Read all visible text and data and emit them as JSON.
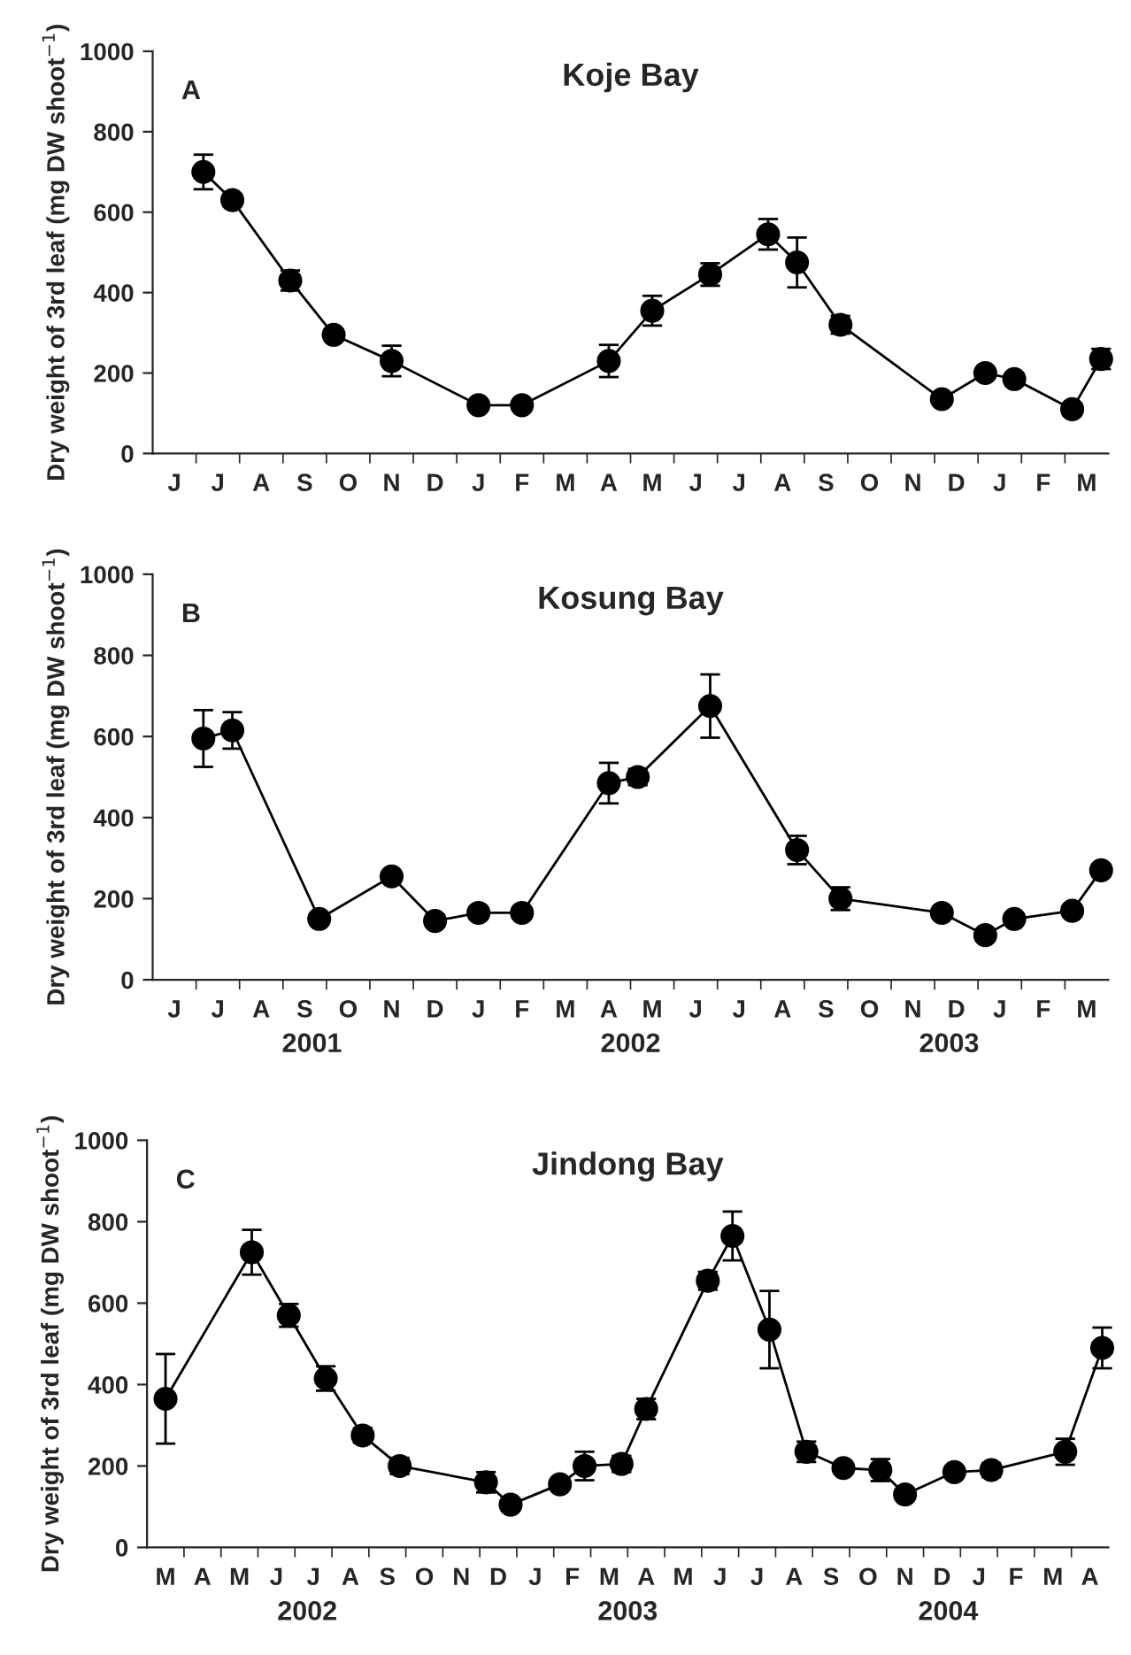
{
  "chart_data": [
    {
      "type": "line",
      "title": "Koje Bay",
      "ylabel": "Dry weight of 3rd leaf (mg DW shoot$^{−1}$)",
      "color": "#000000",
      "marker": "circle",
      "line_style": "solid",
      "categories": [
        null,
        "J",
        null,
        null,
        "J",
        null,
        null,
        "A",
        null,
        null,
        "S",
        null,
        null,
        "O",
        null,
        null,
        "N",
        null,
        null,
        "D",
        null,
        null,
        "J",
        null,
        null,
        "F",
        null,
        null,
        "M",
        null,
        null,
        "A",
        null,
        null,
        "M",
        null,
        null,
        "J",
        null,
        null,
        "J",
        null,
        null,
        "A",
        null,
        null,
        "S",
        null,
        null,
        "O",
        null,
        null,
        "N",
        null,
        null,
        "D",
        null,
        null,
        "J",
        null,
        null,
        "F",
        null,
        null,
        "M",
        null
      ],
      "values": [
        null,
        null,
        null,
        700,
        null,
        630,
        null,
        null,
        null,
        430,
        null,
        null,
        295,
        null,
        null,
        null,
        230,
        null,
        null,
        null,
        null,
        null,
        120,
        null,
        null,
        120,
        null,
        null,
        null,
        null,
        null,
        230,
        null,
        null,
        355,
        null,
        null,
        null,
        445,
        null,
        null,
        null,
        545,
        null,
        475,
        null,
        null,
        320,
        null,
        null,
        null,
        null,
        null,
        null,
        135,
        null,
        null,
        200,
        null,
        185,
        null,
        null,
        null,
        110,
        null,
        235
      ],
      "errors": [
        null,
        null,
        null,
        43,
        null,
        15,
        null,
        null,
        null,
        25,
        null,
        null,
        15,
        null,
        null,
        null,
        38,
        null,
        null,
        null,
        null,
        null,
        10,
        null,
        null,
        12,
        null,
        null,
        null,
        null,
        null,
        40,
        null,
        null,
        37,
        null,
        null,
        null,
        28,
        null,
        null,
        null,
        38,
        null,
        62,
        null,
        null,
        22,
        null,
        null,
        null,
        null,
        null,
        null,
        13,
        null,
        null,
        12,
        null,
        15,
        null,
        null,
        null,
        15,
        null,
        25
      ],
      "ylim": [
        0,
        1000
      ],
      "yticks": [
        0,
        200,
        400,
        600,
        800,
        1000
      ],
      "grid": false,
      "annotations": [
        "A"
      ]
    },
    {
      "type": "line",
      "title": "Kosung Bay",
      "ylabel": "Dry weight of 3rd leaf (mg DW shoot$^{−1}$)",
      "color": "#000000",
      "marker": "circle",
      "line_style": "solid",
      "categories": [
        null,
        "J",
        null,
        null,
        "J",
        null,
        null,
        "A",
        null,
        null,
        "S",
        null,
        null,
        "O",
        null,
        null,
        "N",
        null,
        null,
        "D",
        null,
        null,
        "J",
        null,
        null,
        "F",
        null,
        null,
        "M",
        null,
        null,
        "A",
        null,
        null,
        "M",
        null,
        null,
        "J",
        null,
        null,
        "J",
        null,
        null,
        "A",
        null,
        null,
        "S",
        null,
        null,
        "O",
        null,
        null,
        "N",
        null,
        null,
        "D",
        null,
        null,
        "J",
        null,
        null,
        "F",
        null,
        null,
        "M",
        null
      ],
      "values": [
        null,
        null,
        null,
        595,
        null,
        615,
        null,
        null,
        null,
        null,
        null,
        150,
        null,
        null,
        null,
        null,
        255,
        null,
        null,
        145,
        null,
        null,
        165,
        null,
        null,
        165,
        null,
        null,
        null,
        null,
        null,
        485,
        null,
        500,
        null,
        null,
        null,
        null,
        675,
        null,
        null,
        null,
        null,
        null,
        320,
        null,
        null,
        200,
        null,
        null,
        null,
        null,
        null,
        null,
        165,
        null,
        null,
        110,
        null,
        150,
        null,
        null,
        null,
        170,
        null,
        270
      ],
      "errors": [
        null,
        null,
        null,
        70,
        null,
        45,
        null,
        null,
        null,
        null,
        null,
        12,
        null,
        null,
        null,
        null,
        12,
        null,
        null,
        15,
        null,
        null,
        15,
        null,
        null,
        12,
        null,
        null,
        null,
        null,
        null,
        50,
        null,
        20,
        null,
        null,
        null,
        null,
        78,
        null,
        null,
        null,
        null,
        null,
        35,
        null,
        null,
        28,
        null,
        null,
        null,
        null,
        null,
        null,
        12,
        null,
        null,
        15,
        null,
        12,
        null,
        null,
        null,
        12,
        null,
        15
      ],
      "ylim": [
        0,
        1000
      ],
      "yticks": [
        0,
        200,
        400,
        600,
        800,
        1000
      ],
      "grid": false,
      "annotations": [
        "B",
        "2001",
        "2002",
        "2003"
      ]
    },
    {
      "type": "line",
      "title": "Jindong Bay",
      "ylabel": "Dry weight of 3rd leaf (mg DW shoot$^{−1}$)",
      "color": "#000000",
      "marker": "circle",
      "line_style": "solid",
      "categories": [
        null,
        "M",
        null,
        null,
        "A",
        null,
        null,
        "M",
        null,
        null,
        "J",
        null,
        null,
        "J",
        null,
        null,
        "A",
        null,
        null,
        "S",
        null,
        null,
        "O",
        null,
        null,
        "N",
        null,
        null,
        "D",
        null,
        null,
        "J",
        null,
        null,
        "F",
        null,
        null,
        "M",
        null,
        null,
        "A",
        null,
        null,
        "M",
        null,
        null,
        "J",
        null,
        null,
        "J",
        null,
        null,
        "A",
        null,
        null,
        "S",
        null,
        null,
        "O",
        null,
        null,
        "N",
        null,
        null,
        "D",
        null,
        null,
        "J",
        null,
        null,
        "F",
        null,
        null,
        "M",
        null,
        null,
        "A",
        null
      ],
      "values": [
        null,
        365,
        null,
        null,
        null,
        null,
        null,
        null,
        725,
        null,
        null,
        570,
        null,
        null,
        415,
        null,
        null,
        275,
        null,
        null,
        200,
        null,
        null,
        null,
        null,
        null,
        null,
        160,
        null,
        105,
        null,
        null,
        null,
        155,
        null,
        200,
        null,
        null,
        205,
        null,
        340,
        null,
        null,
        null,
        null,
        655,
        null,
        765,
        null,
        null,
        535,
        null,
        null,
        235,
        null,
        null,
        195,
        null,
        null,
        190,
        null,
        130,
        null,
        null,
        null,
        185,
        null,
        null,
        190,
        null,
        null,
        null,
        null,
        null,
        235,
        null,
        null,
        490
      ],
      "errors": [
        null,
        110,
        null,
        null,
        null,
        null,
        null,
        null,
        55,
        null,
        null,
        28,
        null,
        null,
        30,
        null,
        null,
        18,
        null,
        null,
        20,
        null,
        null,
        null,
        null,
        null,
        null,
        25,
        null,
        12,
        null,
        null,
        null,
        10,
        null,
        35,
        null,
        null,
        20,
        null,
        25,
        null,
        null,
        null,
        null,
        22,
        null,
        60,
        null,
        null,
        95,
        null,
        null,
        25,
        null,
        null,
        12,
        null,
        null,
        27,
        null,
        10,
        null,
        null,
        null,
        12,
        null,
        null,
        17,
        null,
        null,
        null,
        null,
        null,
        32,
        null,
        null,
        50
      ],
      "ylim": [
        0,
        1000
      ],
      "yticks": [
        0,
        200,
        400,
        600,
        800,
        1000
      ],
      "grid": false,
      "annotations": [
        "C",
        "2002",
        "2003",
        "2004"
      ]
    }
  ]
}
